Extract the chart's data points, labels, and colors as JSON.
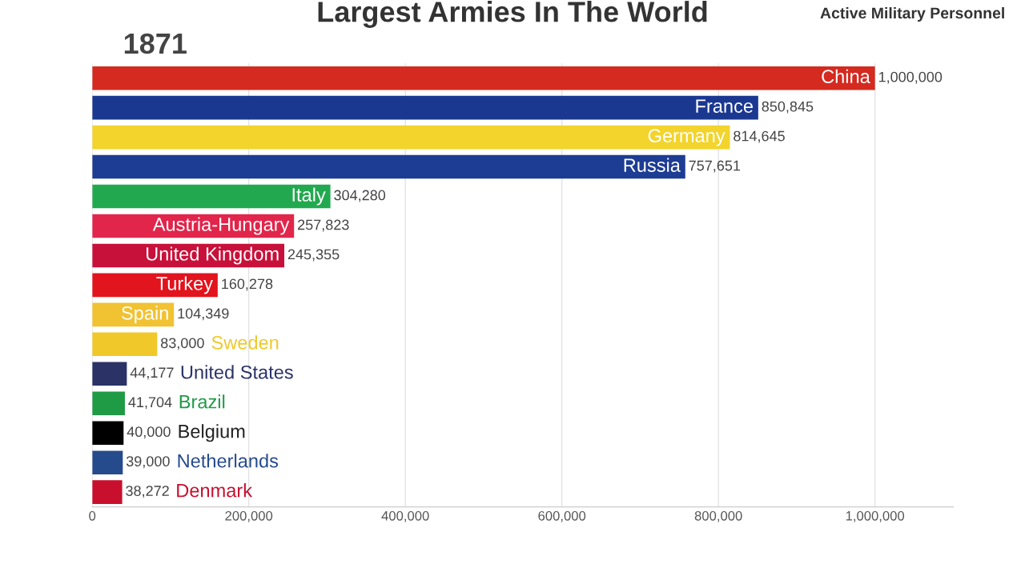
{
  "chart_data": {
    "type": "bar",
    "orientation": "horizontal",
    "title": "Largest Armies In The World",
    "subtitle": "Active Military Personnel",
    "annotations": [
      "1871"
    ],
    "categories": [
      "China",
      "France",
      "Germany",
      "Russia",
      "Italy",
      "Austria-Hungary",
      "United Kingdom",
      "Turkey",
      "Spain",
      "Sweden",
      "United States",
      "Brazil",
      "Belgium",
      "Netherlands",
      "Denmark"
    ],
    "values": [
      1000000,
      850845,
      814645,
      757651,
      304280,
      257823,
      245355,
      160278,
      104349,
      83000,
      44177,
      41704,
      40000,
      39000,
      38272
    ],
    "value_labels": [
      "1,000,000",
      "850,845",
      "814,645",
      "757,651",
      "304,280",
      "257,823",
      "245,355",
      "160,278",
      "104,349",
      "83,000",
      "44,177",
      "41,704",
      "40,000",
      "39,000",
      "38,272"
    ],
    "colors": [
      "#d42a20",
      "#1b3891",
      "#f2d42c",
      "#1d3c93",
      "#22a94f",
      "#e1254b",
      "#c8113a",
      "#e2141d",
      "#f1c232",
      "#f0c82a",
      "#2a3266",
      "#1f9a45",
      "#000000",
      "#264b8c",
      "#c8102e"
    ],
    "xlim": [
      0,
      1100000
    ],
    "xticks": [
      {
        "value": 0,
        "label": "0"
      },
      {
        "value": 200000,
        "label": "200,000"
      },
      {
        "value": 400000,
        "label": "400,000"
      },
      {
        "value": 600000,
        "label": "600,000"
      },
      {
        "value": 800000,
        "label": "800,000"
      },
      {
        "value": 1000000,
        "label": "1,000,000"
      }
    ],
    "grid": "x",
    "tick_labels": "x"
  }
}
